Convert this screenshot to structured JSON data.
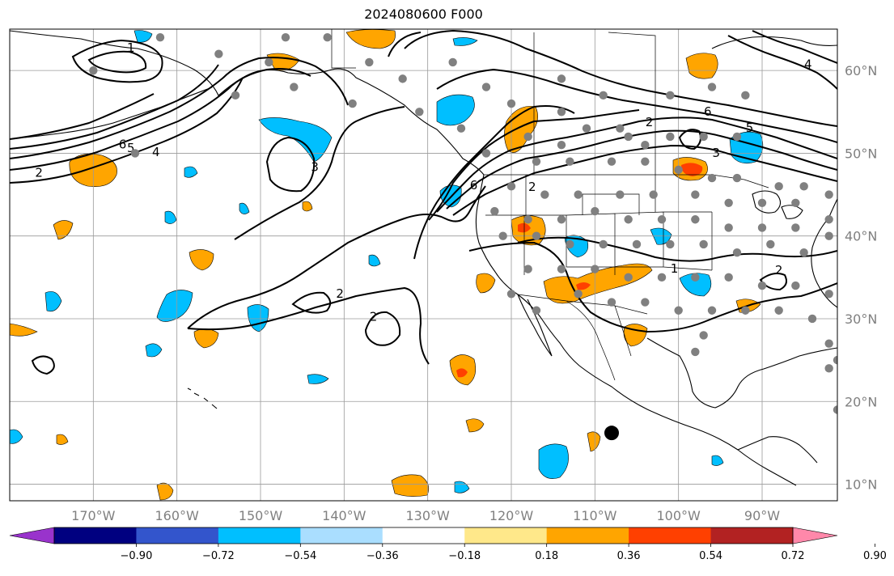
{
  "title": "2024080600 F000",
  "map": {
    "projection": "equirectangular",
    "lon_range": [
      -180,
      -81
    ],
    "lat_range": [
      8,
      65
    ],
    "lon_ticks": [
      {
        "value": -170,
        "label": "170°W"
      },
      {
        "value": -160,
        "label": "160°W"
      },
      {
        "value": -150,
        "label": "150°W"
      },
      {
        "value": -140,
        "label": "140°W"
      },
      {
        "value": -130,
        "label": "130°W"
      },
      {
        "value": -120,
        "label": "120°W"
      },
      {
        "value": -110,
        "label": "110°W"
      },
      {
        "value": -100,
        "label": "100°W"
      },
      {
        "value": -90,
        "label": "90°W"
      }
    ],
    "lat_ticks": [
      {
        "value": 60,
        "label": "60°N"
      },
      {
        "value": 50,
        "label": "50°N"
      },
      {
        "value": 40,
        "label": "40°N"
      },
      {
        "value": 30,
        "label": "30°N"
      },
      {
        "value": 20,
        "label": "20°N"
      },
      {
        "value": 10,
        "label": "10°N"
      }
    ],
    "grid": true,
    "colors": {
      "land_line": "#000000",
      "grid": "#9a9a9a",
      "station": "#808080",
      "marker": "#000000"
    },
    "marker": {
      "lon": -108,
      "lat": 16.2
    }
  },
  "colorbar": {
    "colors": [
      "#9933cc",
      "#000080",
      "#3355cc",
      "#00bfff",
      "#aadeff",
      "#ffffff",
      "#ffe88a",
      "#ffa500",
      "#ff4000",
      "#b22222",
      "#ff88aa"
    ],
    "ticks": [
      "−0.90",
      "−0.72",
      "−0.54",
      "−0.36",
      "−0.18",
      "0.18",
      "0.36",
      "0.54",
      "0.72",
      "0.90"
    ],
    "extend": "both"
  },
  "contour_labels": [
    {
      "text": "1",
      "lon": -165.5,
      "lat": 62.7
    },
    {
      "text": "6",
      "lon": -166.5,
      "lat": 51.0
    },
    {
      "text": "5",
      "lon": -165.5,
      "lat": 50.6
    },
    {
      "text": "4",
      "lon": -162.5,
      "lat": 50.1
    },
    {
      "text": "2",
      "lon": -176.5,
      "lat": 47.6
    },
    {
      "text": "3",
      "lon": -143.5,
      "lat": 48.3
    },
    {
      "text": "2",
      "lon": -140.5,
      "lat": 33.0
    },
    {
      "text": "2",
      "lon": -136.5,
      "lat": 30.2
    },
    {
      "text": "6",
      "lon": -124.5,
      "lat": 46.1
    },
    {
      "text": "2",
      "lon": -117.5,
      "lat": 45.9
    },
    {
      "text": "2",
      "lon": -103.5,
      "lat": 53.7
    },
    {
      "text": "6",
      "lon": -96.5,
      "lat": 55.0
    },
    {
      "text": "5",
      "lon": -91.5,
      "lat": 53.0
    },
    {
      "text": "3",
      "lon": -95.5,
      "lat": 50.0
    },
    {
      "text": "1",
      "lon": -100.5,
      "lat": 36.0
    },
    {
      "text": "2",
      "lon": -88.0,
      "lat": 35.8
    },
    {
      "text": "4",
      "lon": -84.5,
      "lat": 60.7
    }
  ]
}
